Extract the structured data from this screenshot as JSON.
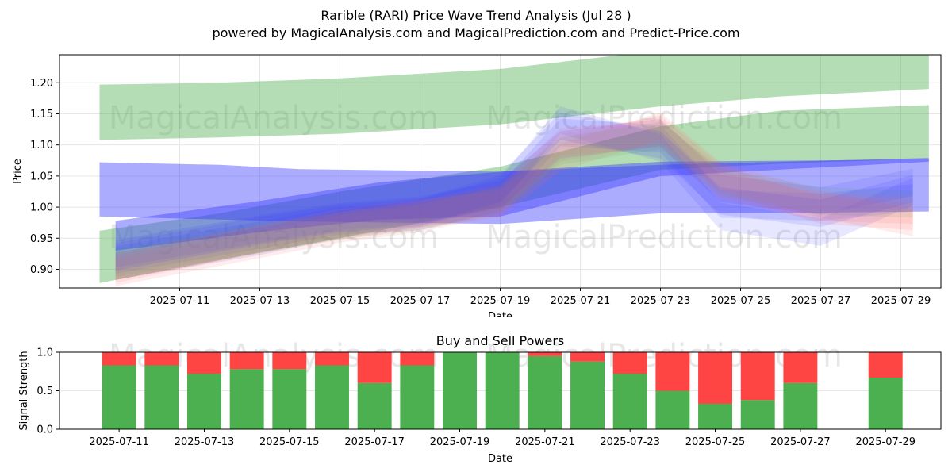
{
  "title": {
    "line1": "Rarible (RARI) Price Wave Trend Analysis (Jul 28 )",
    "line2": "powered by MagicalAnalysis.com and MagicalPrediction.com and Predict-Price.com"
  },
  "watermarks": [
    "MagicalAnalysis.com",
    "MagicalPrediction.com"
  ],
  "colors": {
    "buy": "#4caf50",
    "sell": "#ff4444",
    "band_green": "#4caf50",
    "band_blue": "#3a3aff",
    "band_red": "#ff6666",
    "grid": "#e6e6e6"
  },
  "chart_data": [
    {
      "type": "area",
      "title": "",
      "xlabel": "Date",
      "ylabel": "Price",
      "x_ticks": [
        "2025-07-11",
        "2025-07-13",
        "2025-07-15",
        "2025-07-17",
        "2025-07-19",
        "2025-07-21",
        "2025-07-23",
        "2025-07-25",
        "2025-07-27",
        "2025-07-29"
      ],
      "y_ticks": [
        "0.90",
        "0.95",
        "1.00",
        "1.05",
        "1.10",
        "1.15",
        "1.20"
      ],
      "xlim": [
        "2025-07-08",
        "2025-07-30"
      ],
      "ylim": [
        0.87,
        1.245
      ],
      "grid": true,
      "bands": [
        {
          "color": "green",
          "x": [
            "2025-07-09",
            "2025-07-12",
            "2025-07-15",
            "2025-07-19",
            "2025-07-23",
            "2025-07-26",
            "2025-07-29.7"
          ],
          "upper": [
            1.197,
            1.2,
            1.207,
            1.222,
            1.252,
            1.265,
            1.27
          ],
          "lower": [
            1.108,
            1.112,
            1.118,
            1.133,
            1.162,
            1.178,
            1.19
          ]
        },
        {
          "color": "green",
          "x": [
            "2025-07-09",
            "2025-07-12",
            "2025-07-15",
            "2025-07-19",
            "2025-07-23",
            "2025-07-26",
            "2025-07-29.7"
          ],
          "upper": [
            0.962,
            0.99,
            1.025,
            1.065,
            1.13,
            1.155,
            1.164
          ],
          "lower": [
            0.878,
            0.915,
            0.95,
            1.0,
            1.06,
            1.07,
            1.078
          ]
        },
        {
          "color": "blue",
          "x": [
            "2025-07-09",
            "2025-07-12",
            "2025-07-14",
            "2025-07-19",
            "2025-07-23",
            "2025-07-27",
            "2025-07-29.7"
          ],
          "upper": [
            1.072,
            1.068,
            1.061,
            1.057,
            1.073,
            1.075,
            1.077
          ],
          "lower": [
            0.985,
            0.98,
            0.977,
            0.973,
            0.99,
            0.991,
            0.993
          ]
        },
        {
          "color": "blue",
          "x": [
            "2025-07-09.4",
            "2025-07-13",
            "2025-07-16",
            "2025-07-19",
            "2025-07-23",
            "2025-07-29.7"
          ],
          "upper": [
            0.978,
            1.01,
            1.04,
            1.057,
            1.068,
            1.079
          ],
          "lower": [
            0.93,
            0.96,
            0.98,
            0.985,
            1.05,
            1.073
          ]
        }
      ],
      "ensemble_paths": [
        {
          "color": "blue",
          "y": [
            0.915,
            0.955,
            0.978,
            0.985,
            1.015,
            1.12,
            1.11,
            1.005,
            1.0,
            1.015
          ]
        },
        {
          "color": "blue",
          "y": [
            0.905,
            0.945,
            0.972,
            0.99,
            1.025,
            1.14,
            1.095,
            0.985,
            0.96,
            1.025
          ]
        },
        {
          "color": "blue",
          "y": [
            0.925,
            0.965,
            0.985,
            0.995,
            1.02,
            1.1,
            1.12,
            1.03,
            1.01,
            1.04
          ]
        },
        {
          "color": "red",
          "y": [
            0.895,
            0.94,
            0.965,
            0.982,
            1.01,
            1.095,
            1.125,
            1.045,
            0.995,
            0.985
          ]
        },
        {
          "color": "red",
          "y": [
            0.9,
            0.95,
            0.975,
            0.99,
            1.005,
            1.08,
            1.13,
            1.05,
            1.005,
            0.975
          ]
        },
        {
          "color": "green",
          "y": [
            0.91,
            0.95,
            0.97,
            0.985,
            1.012,
            1.09,
            1.115,
            1.04,
            1.01,
            1.005
          ]
        },
        {
          "color": "blue",
          "y": [
            0.92,
            0.962,
            0.982,
            0.992,
            1.03,
            1.13,
            1.1,
            1.01,
            0.99,
            1.03
          ]
        },
        {
          "color": "red",
          "y": [
            0.905,
            0.948,
            0.97,
            0.988,
            1.015,
            1.105,
            1.118,
            1.035,
            1.0,
            0.995
          ]
        }
      ],
      "ensemble_x": [
        "2025-07-09.4",
        "2025-07-13",
        "2025-07-15",
        "2025-07-17",
        "2025-07-19",
        "2025-07-20.5",
        "2025-07-23",
        "2025-07-24.5",
        "2025-07-27",
        "2025-07-29.3"
      ]
    },
    {
      "type": "bar",
      "title": "Buy and Sell Powers",
      "xlabel": "Date",
      "ylabel": "Signal Strength",
      "x_ticks": [
        "2025-07-11",
        "2025-07-13",
        "2025-07-15",
        "2025-07-17",
        "2025-07-19",
        "2025-07-21",
        "2025-07-23",
        "2025-07-25",
        "2025-07-27",
        "2025-07-29"
      ],
      "y_ticks": [
        "0.0",
        "0.5",
        "1.0"
      ],
      "ylim": [
        0,
        1
      ],
      "categories": [
        "2025-07-11",
        "2025-07-12",
        "2025-07-13",
        "2025-07-14",
        "2025-07-15",
        "2025-07-16",
        "2025-07-17",
        "2025-07-18",
        "2025-07-19",
        "2025-07-20",
        "2025-07-21",
        "2025-07-22",
        "2025-07-23",
        "2025-07-24",
        "2025-07-25",
        "2025-07-26",
        "2025-07-27",
        "2025-07-29"
      ],
      "series": [
        {
          "name": "Buy",
          "values": [
            0.83,
            0.83,
            0.72,
            0.78,
            0.78,
            0.83,
            0.6,
            0.83,
            1.0,
            1.0,
            0.95,
            0.88,
            0.72,
            0.5,
            0.33,
            0.38,
            0.6,
            0.67
          ]
        },
        {
          "name": "Sell",
          "values": [
            0.17,
            0.17,
            0.28,
            0.22,
            0.22,
            0.17,
            0.4,
            0.17,
            0.0,
            0.0,
            0.05,
            0.12,
            0.28,
            0.5,
            0.67,
            0.62,
            0.4,
            0.33
          ]
        }
      ]
    }
  ]
}
